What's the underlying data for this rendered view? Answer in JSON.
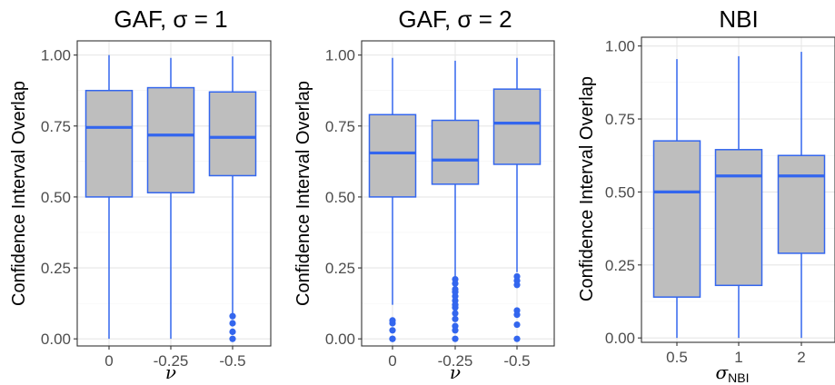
{
  "chart_data": [
    {
      "type": "box",
      "title": "GAF,  σ = 1",
      "xlabel": "ν",
      "ylabel": "Confidence Interval Overlap",
      "ylim": [
        -0.025,
        1.05
      ],
      "yticks": [
        "0.00",
        "0.25",
        "0.50",
        "0.75",
        "1.00"
      ],
      "yticks_values": [
        0,
        0.25,
        0.5,
        0.75,
        1
      ],
      "categories": [
        "0",
        "-0.25",
        "-0.5"
      ],
      "boxes": [
        {
          "q1": 0.5,
          "median": 0.745,
          "q3": 0.875,
          "whisker_low": 0.0,
          "whisker_high": 1.0,
          "outliers": []
        },
        {
          "q1": 0.515,
          "median": 0.718,
          "q3": 0.885,
          "whisker_low": 0.0,
          "whisker_high": 0.99,
          "outliers": []
        },
        {
          "q1": 0.575,
          "median": 0.71,
          "q3": 0.87,
          "whisker_low": 0.09,
          "whisker_high": 0.995,
          "outliers": [
            0.0,
            0.025,
            0.055,
            0.08
          ]
        }
      ],
      "box_fill": "#bebebe",
      "line_color": "#3366ee",
      "grid": true
    },
    {
      "type": "box",
      "title": "GAF,  σ = 2",
      "xlabel": "ν",
      "ylabel": "Confidence Interval Overlap",
      "ylim": [
        -0.025,
        1.05
      ],
      "yticks": [
        "0.00",
        "0.25",
        "0.50",
        "0.75",
        "1.00"
      ],
      "yticks_values": [
        0,
        0.25,
        0.5,
        0.75,
        1
      ],
      "categories": [
        "0",
        "-0.25",
        "-0.5"
      ],
      "boxes": [
        {
          "q1": 0.5,
          "median": 0.655,
          "q3": 0.79,
          "whisker_low": 0.12,
          "whisker_high": 0.99,
          "outliers": [
            0.0,
            0.0,
            0.03,
            0.055,
            0.065
          ]
        },
        {
          "q1": 0.545,
          "median": 0.63,
          "q3": 0.77,
          "whisker_low": 0.22,
          "whisker_high": 0.98,
          "outliers": [
            0.0,
            0.03,
            0.045,
            0.07,
            0.09,
            0.11,
            0.12,
            0.135,
            0.15,
            0.165,
            0.175,
            0.195,
            0.21
          ]
        },
        {
          "q1": 0.615,
          "median": 0.76,
          "q3": 0.88,
          "whisker_low": 0.235,
          "whisker_high": 0.99,
          "outliers": [
            0.0,
            0.05,
            0.085,
            0.1,
            0.19,
            0.205,
            0.22
          ]
        }
      ],
      "box_fill": "#bebebe",
      "line_color": "#3366ee",
      "grid": true
    },
    {
      "type": "box",
      "title": "NBI",
      "xlabel": "σ",
      "xlabel_sub": "NBI",
      "ylabel": "Confidence Interval Overlap",
      "ylim": [
        -0.015,
        1.03
      ],
      "yticks": [
        "0.00",
        "0.25",
        "0.50",
        "0.75",
        "1.00"
      ],
      "yticks_values": [
        0,
        0.25,
        0.5,
        0.75,
        1
      ],
      "categories": [
        "0.5",
        "1",
        "2"
      ],
      "boxes": [
        {
          "q1": 0.14,
          "median": 0.5,
          "q3": 0.675,
          "whisker_low": 0.0,
          "whisker_high": 0.955,
          "outliers": []
        },
        {
          "q1": 0.18,
          "median": 0.555,
          "q3": 0.645,
          "whisker_low": 0.0,
          "whisker_high": 0.965,
          "outliers": []
        },
        {
          "q1": 0.29,
          "median": 0.555,
          "q3": 0.625,
          "whisker_low": 0.0,
          "whisker_high": 0.98,
          "outliers": []
        }
      ],
      "box_fill": "#bebebe",
      "line_color": "#3366ee",
      "grid": true
    }
  ]
}
